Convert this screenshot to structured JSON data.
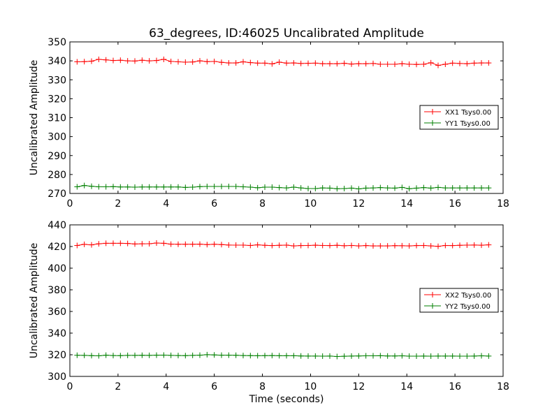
{
  "chart_data": [
    {
      "type": "line",
      "title": "63_degrees, ID:46025 Uncalibrated Amplitude",
      "xlabel": "",
      "ylabel": "Uncalibrated Amplitude",
      "xlim": [
        0,
        18
      ],
      "ylim": [
        270,
        350
      ],
      "xticks": [
        "0",
        "2",
        "4",
        "6",
        "8",
        "10",
        "12",
        "14",
        "16",
        "18"
      ],
      "yticks": [
        "270",
        "280",
        "290",
        "300",
        "310",
        "320",
        "330",
        "340",
        "350"
      ],
      "grid": false,
      "legend_position": "center-right",
      "x": [
        0.3,
        0.6,
        0.9,
        1.2,
        1.5,
        1.8,
        2.1,
        2.4,
        2.7,
        3.0,
        3.3,
        3.6,
        3.9,
        4.2,
        4.5,
        4.8,
        5.1,
        5.4,
        5.7,
        6.0,
        6.3,
        6.6,
        6.9,
        7.2,
        7.5,
        7.8,
        8.1,
        8.4,
        8.7,
        9.0,
        9.3,
        9.6,
        9.9,
        10.2,
        10.5,
        10.8,
        11.1,
        11.4,
        11.7,
        12.0,
        12.3,
        12.6,
        12.9,
        13.2,
        13.5,
        13.8,
        14.1,
        14.4,
        14.7,
        15.0,
        15.3,
        15.6,
        15.9,
        16.2,
        16.5,
        16.8,
        17.1,
        17.4
      ],
      "series": [
        {
          "name": "XX1 Tsys0.00",
          "color": "#ff0000",
          "values": [
            339.5,
            339.6,
            339.8,
            340.8,
            340.5,
            340.2,
            340.3,
            340.0,
            339.9,
            340.3,
            340.0,
            340.2,
            340.8,
            339.7,
            339.5,
            339.3,
            339.4,
            340.0,
            339.6,
            339.7,
            339.2,
            338.9,
            338.9,
            339.5,
            339.1,
            338.8,
            338.8,
            338.4,
            339.3,
            338.8,
            338.9,
            338.6,
            338.7,
            338.8,
            338.5,
            338.5,
            338.5,
            338.7,
            338.3,
            338.5,
            338.5,
            338.6,
            338.2,
            338.2,
            338.2,
            338.5,
            338.2,
            338.1,
            338.2,
            339.0,
            337.6,
            338.2,
            338.8,
            338.6,
            338.5,
            338.8,
            338.9,
            338.9
          ]
        },
        {
          "name": "YY1 Tsys0.00",
          "color": "#007f00",
          "values": [
            273.5,
            274.2,
            273.8,
            273.5,
            273.5,
            273.6,
            273.4,
            273.4,
            273.3,
            273.4,
            273.4,
            273.4,
            273.4,
            273.4,
            273.4,
            273.2,
            273.3,
            273.6,
            273.7,
            273.7,
            273.7,
            273.7,
            273.7,
            273.5,
            273.3,
            273.0,
            273.3,
            273.3,
            273.1,
            272.9,
            273.3,
            272.9,
            272.6,
            272.6,
            272.9,
            272.8,
            272.5,
            272.6,
            272.8,
            272.4,
            272.8,
            272.9,
            273.1,
            272.9,
            272.8,
            273.2,
            272.5,
            272.8,
            273.1,
            272.8,
            273.2,
            272.9,
            272.9,
            272.9,
            272.9,
            272.9,
            272.9,
            272.9
          ]
        }
      ]
    },
    {
      "type": "line",
      "title": "",
      "xlabel": "Time (seconds)",
      "ylabel": "Uncalibrated Amplitude",
      "xlim": [
        0,
        18
      ],
      "ylim": [
        300,
        440
      ],
      "xticks": [
        "0",
        "2",
        "4",
        "6",
        "8",
        "10",
        "12",
        "14",
        "16",
        "18"
      ],
      "yticks": [
        "300",
        "320",
        "340",
        "360",
        "380",
        "400",
        "420",
        "440"
      ],
      "grid": false,
      "legend_position": "center-right",
      "x": [
        0.3,
        0.6,
        0.9,
        1.2,
        1.5,
        1.8,
        2.1,
        2.4,
        2.7,
        3.0,
        3.3,
        3.6,
        3.9,
        4.2,
        4.5,
        4.8,
        5.1,
        5.4,
        5.7,
        6.0,
        6.3,
        6.6,
        6.9,
        7.2,
        7.5,
        7.8,
        8.1,
        8.4,
        8.7,
        9.0,
        9.3,
        9.6,
        9.9,
        10.2,
        10.5,
        10.8,
        11.1,
        11.4,
        11.7,
        12.0,
        12.3,
        12.6,
        12.9,
        13.2,
        13.5,
        13.8,
        14.1,
        14.4,
        14.7,
        15.0,
        15.3,
        15.6,
        15.9,
        16.2,
        16.5,
        16.8,
        17.1,
        17.4
      ],
      "series": [
        {
          "name": "XX2 Tsys0.00",
          "color": "#ff0000",
          "values": [
            421.0,
            422.0,
            421.5,
            422.5,
            423.0,
            423.0,
            423.0,
            422.8,
            422.3,
            422.5,
            422.6,
            423.2,
            423.0,
            422.2,
            422.1,
            422.1,
            422.1,
            422.2,
            421.8,
            422.1,
            421.8,
            421.4,
            421.3,
            421.3,
            421.0,
            421.5,
            421.1,
            420.9,
            421.1,
            421.3,
            420.6,
            420.9,
            421.0,
            421.2,
            421.0,
            420.9,
            421.1,
            420.7,
            421.0,
            420.6,
            420.9,
            420.6,
            420.6,
            420.6,
            420.8,
            420.7,
            420.6,
            420.9,
            421.0,
            420.6,
            420.2,
            421.0,
            420.9,
            421.1,
            421.3,
            421.4,
            421.2,
            421.5
          ]
        },
        {
          "name": "YY2 Tsys0.00",
          "color": "#007f00",
          "values": [
            319.5,
            319.4,
            319.2,
            319.0,
            319.6,
            319.3,
            319.2,
            319.4,
            319.4,
            319.5,
            319.4,
            319.6,
            319.7,
            319.4,
            319.3,
            319.2,
            319.4,
            319.6,
            320.1,
            319.8,
            319.6,
            319.6,
            319.5,
            319.3,
            319.2,
            319.1,
            319.2,
            319.3,
            319.1,
            319.1,
            319.1,
            318.9,
            318.8,
            318.8,
            318.7,
            318.8,
            318.4,
            318.6,
            318.8,
            318.9,
            319.0,
            319.0,
            319.1,
            318.9,
            318.9,
            319.0,
            318.7,
            318.7,
            318.8,
            318.7,
            318.8,
            318.8,
            318.8,
            318.7,
            318.7,
            318.8,
            319.0,
            318.8
          ]
        }
      ]
    }
  ]
}
